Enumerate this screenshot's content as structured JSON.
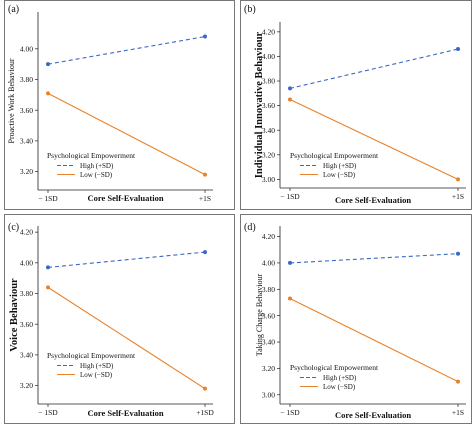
{
  "colors": {
    "high": "#3b68c4",
    "low": "#e8822c",
    "axis": "#222222"
  },
  "legend_title": "Psychological Empowerment",
  "legend_entries": {
    "high": "High (+SD)",
    "low": "Low (−SD)"
  },
  "chart_data": [
    {
      "type": "line",
      "panel_label": "(a)",
      "xlabel": "Core Self-Evaluation",
      "ylabel": "Proactive Work Behaviour",
      "categories": [
        "− 1SD",
        "+1S"
      ],
      "ylim": [
        3.08,
        4.24
      ],
      "yticks": [
        "3.20",
        "3.40",
        "3.60",
        "3.80",
        "4.00"
      ],
      "legend_placement": "bottom-left",
      "series": [
        {
          "name": "High (+SD)",
          "style": "dashed",
          "color": "#3b68c4",
          "values": [
            3.9,
            4.08
          ]
        },
        {
          "name": "Low (−SD)",
          "style": "solid",
          "color": "#e8822c",
          "values": [
            3.71,
            3.18
          ]
        }
      ]
    },
    {
      "type": "line",
      "panel_label": "(b)",
      "xlabel": "Core Self-Evaluation",
      "ylabel": "Individual Innovative Behaviour",
      "categories": [
        "− 1SD",
        "+1S"
      ],
      "ylim": [
        2.93,
        4.28
      ],
      "yticks": [
        "3.00",
        "3.20",
        "3.40",
        "3.60",
        "3.80",
        "4.00",
        "4.20"
      ],
      "legend_placement": "bottom-left",
      "series": [
        {
          "name": "High (+SD)",
          "style": "dashed",
          "color": "#3b68c4",
          "values": [
            3.74,
            4.06
          ]
        },
        {
          "name": "Low (−SD)",
          "style": "solid",
          "color": "#e8822c",
          "values": [
            3.65,
            3.0
          ]
        }
      ]
    },
    {
      "type": "line",
      "panel_label": "(c)",
      "xlabel": "Core Self-Evaluation",
      "ylabel": "Voice Behaviour",
      "categories": [
        "− 1SD",
        "+1SD"
      ],
      "ylim": [
        3.08,
        4.24
      ],
      "yticks": [
        "3.20",
        "3.40",
        "3.60",
        "3.80",
        "4.00",
        "4.20"
      ],
      "legend_placement": "bottom-left",
      "series": [
        {
          "name": "High (+SD)",
          "style": "dashed",
          "color": "#3b68c4",
          "values": [
            3.97,
            4.07
          ]
        },
        {
          "name": "Low (−SD)",
          "style": "solid",
          "color": "#e8822c",
          "values": [
            3.84,
            3.18
          ]
        }
      ]
    },
    {
      "type": "line",
      "panel_label": "(d)",
      "xlabel": "Core Self-Evaluation",
      "ylabel": "Taking Charge Behaviour",
      "categories": [
        "− 1SD",
        "+1S"
      ],
      "ylim": [
        2.93,
        4.28
      ],
      "yticks": [
        "3.00",
        "3.20",
        "3.40",
        "3.60",
        "3.80",
        "4.00",
        "4.20"
      ],
      "legend_placement": "bottom-left",
      "series": [
        {
          "name": "High (+SD)",
          "style": "dashed",
          "color": "#3b68c4",
          "values": [
            4.0,
            4.07
          ]
        },
        {
          "name": "Low (−SD)",
          "style": "solid",
          "color": "#e8822c",
          "values": [
            3.73,
            3.1
          ]
        }
      ]
    }
  ]
}
